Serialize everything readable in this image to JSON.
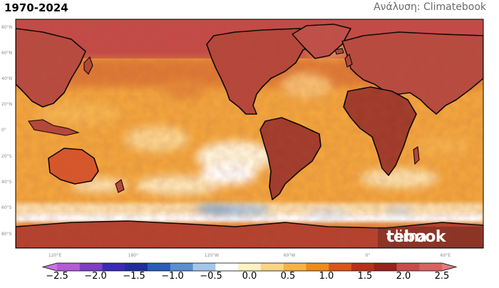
{
  "header": {
    "period": "1970-2024",
    "credit": "Ανάλυση: Climatebook"
  },
  "map": {
    "lat_labels": [
      "80°N",
      "60°N",
      "40°N",
      "20°N",
      "0°",
      "20°S",
      "40°S",
      "60°S",
      "80°S"
    ],
    "lon_labels": [
      "120°E",
      "180°",
      "120°W",
      "60°W",
      "0°",
      "60°E"
    ]
  },
  "watermark": {
    "light": "clima",
    "bold": "tebook"
  },
  "colorbar": {
    "ticks": [
      "−2.5",
      "−2.0",
      "−1.5",
      "−1.0",
      "−0.5",
      "0.0",
      "0.5",
      "1.0",
      "1.5",
      "2.0",
      "2.5"
    ],
    "colors": [
      "#b35bd6",
      "#7d3fc4",
      "#3b2ab8",
      "#1e2f9c",
      "#2a5db8",
      "#5a8fd0",
      "#a6c6e8",
      "#ffffff",
      "#fff1c4",
      "#fbd486",
      "#f6b247",
      "#ef8a1e",
      "#d9561b",
      "#b8321a",
      "#96231c",
      "#c94c4c",
      "#d66363"
    ]
  }
}
